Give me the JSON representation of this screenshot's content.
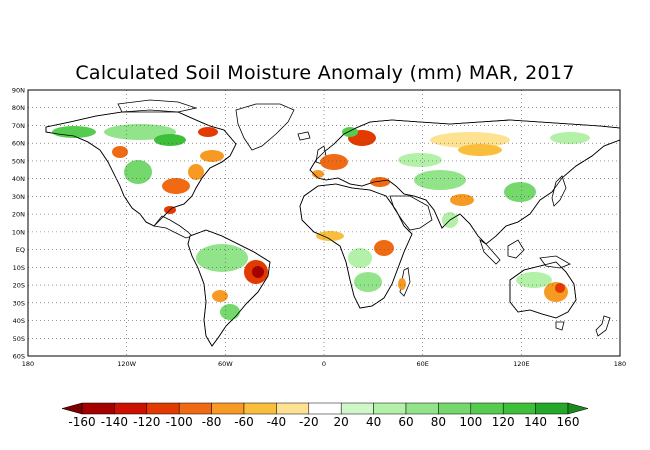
{
  "title": "Calculated Soil Moisture Anomaly (mm) MAR, 2017",
  "map": {
    "lat_labels": [
      "90N",
      "80N",
      "70N",
      "60N",
      "50N",
      "40N",
      "30N",
      "20N",
      "10N",
      "EQ",
      "10S",
      "20S",
      "30S",
      "40S",
      "50S",
      "60S"
    ],
    "lon_labels": [
      "180",
      "120W",
      "60W",
      "0",
      "60E",
      "120E",
      "180"
    ],
    "lat_values": [
      90,
      80,
      70,
      60,
      50,
      40,
      30,
      20,
      10,
      0,
      -10,
      -20,
      -30,
      -40,
      -50,
      -60
    ],
    "lon_values": [
      -180,
      -120,
      -60,
      0,
      60,
      120,
      180
    ],
    "grid": "dotted"
  },
  "colorbar": {
    "labels": [
      "-160",
      "-140",
      "-120",
      "-100",
      "-80",
      "-60",
      "-40",
      "-20",
      "20",
      "40",
      "60",
      "80",
      "100",
      "120",
      "140",
      "160"
    ],
    "colors": [
      "#a50000",
      "#cc1100",
      "#e23a00",
      "#f06a14",
      "#f79a23",
      "#f9bf3c",
      "#fde292",
      "#ffffff",
      "#cff7c8",
      "#b3f0a8",
      "#92e48a",
      "#74d86c",
      "#55cc4f",
      "#3dbf39",
      "#24a82a"
    ],
    "units": "mm"
  },
  "anomaly_regions": [
    {
      "region": "Southern United States",
      "sign": "dry"
    },
    {
      "region": "Central Europe",
      "sign": "dry"
    },
    {
      "region": "Scandinavia",
      "sign": "dry"
    },
    {
      "region": "Central Siberia",
      "sign": "dry"
    },
    {
      "region": "Eastern Brazil",
      "sign": "dry"
    },
    {
      "region": "East Africa",
      "sign": "dry"
    },
    {
      "region": "Eastern Australia",
      "sign": "dry"
    },
    {
      "region": "Canada",
      "sign": "wet"
    },
    {
      "region": "Amazon Basin",
      "sign": "wet"
    },
    {
      "region": "Southern Africa",
      "sign": "wet"
    },
    {
      "region": "Central Asia",
      "sign": "wet"
    }
  ]
}
